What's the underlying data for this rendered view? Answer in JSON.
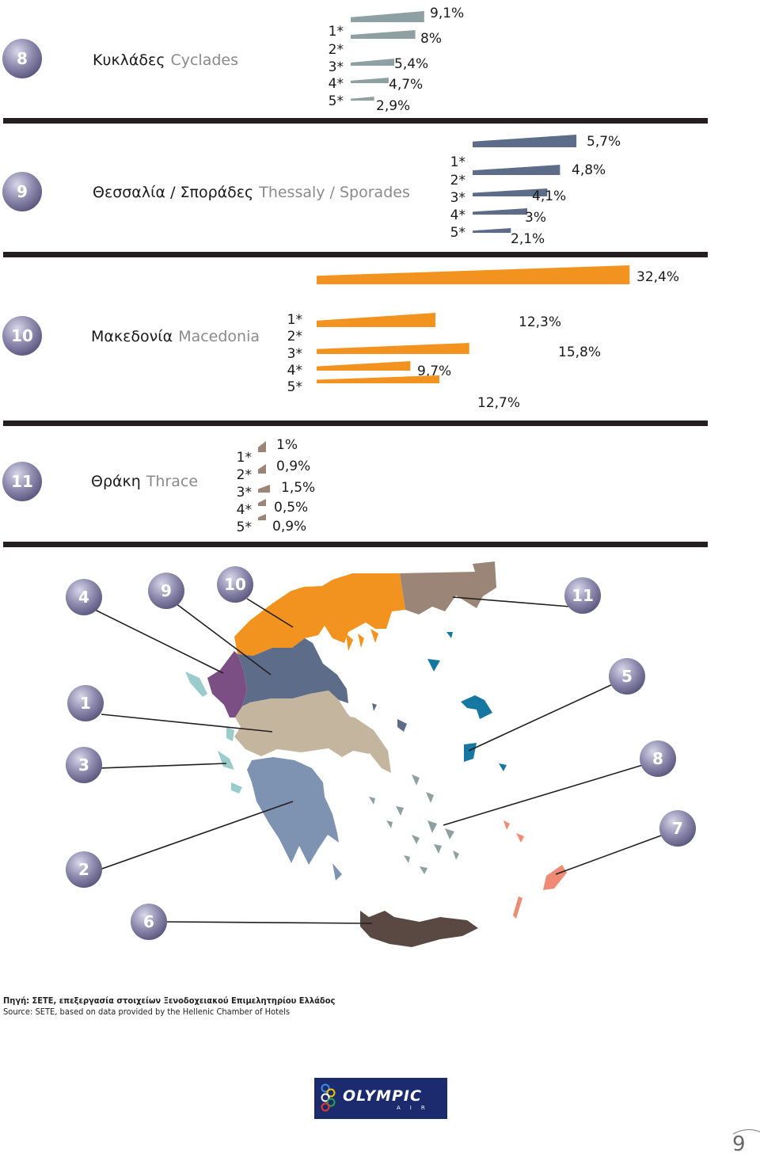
{
  "palette": {
    "cyclades": "#8fa0a2",
    "thessaly": "#5d6d89",
    "macedonia": "#f29320",
    "thrace": "#9b8577",
    "divider": "#231f20",
    "badge": "#8c88ac"
  },
  "chart_data": [
    {
      "type": "bar",
      "region_number": "8",
      "title_gr": "Κυκλάδες",
      "title_en": "Cyclades",
      "categories": [
        "1*",
        "2*",
        "3*",
        "4*",
        "5*"
      ],
      "values": [
        9.1,
        8,
        5.4,
        4.7,
        2.9
      ],
      "value_labels": [
        "9,1%",
        "8%",
        "5,4%",
        "4,7%",
        "2,9%"
      ],
      "unit": "%"
    },
    {
      "type": "bar",
      "region_number": "9",
      "title_gr": "Θεσσαλία / Σποράδες",
      "title_en": "Thessaly / Sporades",
      "categories": [
        "1*",
        "2*",
        "3*",
        "4*",
        "5*"
      ],
      "values": [
        5.7,
        4.8,
        4.1,
        3,
        2.1
      ],
      "value_labels": [
        "5,7%",
        "4,8%",
        "4,1%",
        "3%",
        "2,1%"
      ],
      "unit": "%"
    },
    {
      "type": "bar",
      "region_number": "10",
      "title_gr": "Μακεδονία",
      "title_en": "Macedonia",
      "categories": [
        "1*",
        "2*",
        "3*",
        "4*",
        "5*"
      ],
      "values": [
        32.4,
        12.3,
        15.8,
        9.7,
        12.7
      ],
      "value_labels": [
        "32,4%",
        "12,3%",
        "15,8%",
        "9,7%",
        "12,7%"
      ],
      "unit": "%"
    },
    {
      "type": "bar",
      "region_number": "11",
      "title_gr": "Θράκη",
      "title_en": "Thrace",
      "categories": [
        "1*",
        "2*",
        "3*",
        "4*",
        "5*"
      ],
      "values": [
        1,
        0.9,
        1.5,
        0.5,
        0.9
      ],
      "value_labels": [
        "1%",
        "0,9%",
        "1,5%",
        "0,5%",
        "0,9%"
      ],
      "unit": "%"
    }
  ],
  "map_badges": [
    "4",
    "9",
    "10",
    "11",
    "1",
    "5",
    "3",
    "8",
    "7",
    "2",
    "6"
  ],
  "source_gr": "Πηγή: ΣΕΤΕ, επεξεργασία στοιχείων Ξενοδοχειακού Επιμελητηρίου Ελλάδος",
  "source_en": "Source: SETE, based on data provided by the Hellenic Chamber of Hotels",
  "logo": {
    "word": "OLYMPIC",
    "sub": "AIR"
  },
  "page_number": "9"
}
